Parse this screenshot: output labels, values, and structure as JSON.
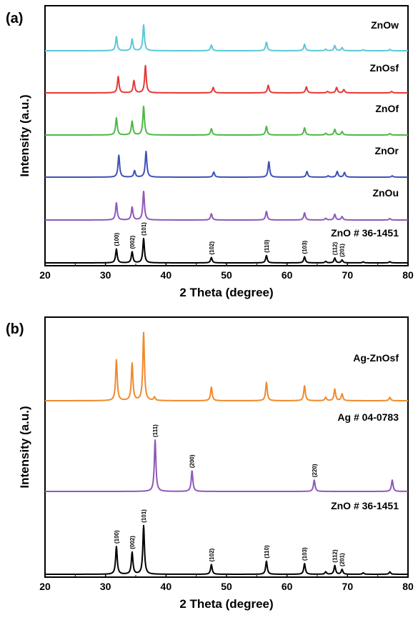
{
  "chart_data": [
    {
      "panel_label": "(a)",
      "type": "line",
      "xlabel": "2 Theta (degree)",
      "ylabel": "Intensity (a.u.)",
      "xlim": [
        20,
        80
      ],
      "xticks": [
        "20",
        "30",
        "40",
        "50",
        "60",
        "70",
        "80"
      ],
      "series": [
        {
          "name": "ZnOw",
          "color": "#5bc8d8",
          "peaks": [
            [
              31.8,
              0.55
            ],
            [
              34.4,
              0.45
            ],
            [
              36.3,
              1.0
            ],
            [
              47.5,
              0.22
            ],
            [
              56.6,
              0.33
            ],
            [
              62.9,
              0.25
            ],
            [
              66.4,
              0.06
            ],
            [
              67.9,
              0.2
            ],
            [
              69.1,
              0.12
            ],
            [
              72.6,
              0.04
            ],
            [
              77.0,
              0.05
            ]
          ]
        },
        {
          "name": "ZnOsf",
          "color": "#e53935",
          "peaks": [
            [
              32.1,
              0.6
            ],
            [
              34.7,
              0.45
            ],
            [
              36.6,
              1.0
            ],
            [
              47.8,
              0.2
            ],
            [
              56.9,
              0.28
            ],
            [
              63.2,
              0.22
            ],
            [
              66.7,
              0.05
            ],
            [
              68.2,
              0.2
            ],
            [
              69.4,
              0.12
            ],
            [
              77.3,
              0.05
            ]
          ]
        },
        {
          "name": "ZnOf",
          "color": "#4cb944",
          "peaks": [
            [
              31.8,
              0.6
            ],
            [
              34.4,
              0.48
            ],
            [
              36.3,
              1.0
            ],
            [
              47.5,
              0.22
            ],
            [
              56.6,
              0.3
            ],
            [
              62.9,
              0.25
            ],
            [
              66.4,
              0.06
            ],
            [
              67.9,
              0.2
            ],
            [
              69.1,
              0.12
            ],
            [
              77.0,
              0.05
            ]
          ]
        },
        {
          "name": "ZnOr",
          "color": "#3f51b5",
          "peaks": [
            [
              32.2,
              0.85
            ],
            [
              34.8,
              0.25
            ],
            [
              36.7,
              1.0
            ],
            [
              47.9,
              0.2
            ],
            [
              57.0,
              0.6
            ],
            [
              63.3,
              0.22
            ],
            [
              66.8,
              0.05
            ],
            [
              68.3,
              0.22
            ],
            [
              69.5,
              0.18
            ],
            [
              77.4,
              0.05
            ]
          ]
        },
        {
          "name": "ZnOu",
          "color": "#8e59b8",
          "peaks": [
            [
              31.8,
              0.6
            ],
            [
              34.4,
              0.45
            ],
            [
              36.3,
              1.0
            ],
            [
              47.5,
              0.22
            ],
            [
              56.6,
              0.3
            ],
            [
              62.9,
              0.25
            ],
            [
              66.4,
              0.06
            ],
            [
              67.9,
              0.2
            ],
            [
              69.1,
              0.12
            ],
            [
              77.0,
              0.05
            ]
          ]
        },
        {
          "name": "ZnO # 36-1451",
          "color": "#000000",
          "peaks": [
            [
              31.8,
              0.57
            ],
            [
              34.4,
              0.45
            ],
            [
              36.3,
              1.0
            ],
            [
              47.5,
              0.22
            ],
            [
              56.6,
              0.3
            ],
            [
              62.9,
              0.25
            ],
            [
              66.4,
              0.06
            ],
            [
              67.9,
              0.2
            ],
            [
              69.1,
              0.12
            ],
            [
              72.6,
              0.04
            ],
            [
              77.0,
              0.05
            ]
          ],
          "peak_labels": [
            {
              "text": "(100)",
              "x": 31.8
            },
            {
              "text": "(002)",
              "x": 34.4
            },
            {
              "text": "(101)",
              "x": 36.3
            },
            {
              "text": "(102)",
              "x": 47.5
            },
            {
              "text": "(110)",
              "x": 56.6
            },
            {
              "text": "(103)",
              "x": 62.9
            },
            {
              "text": "(112)",
              "x": 67.9
            },
            {
              "text": "(201)",
              "x": 69.1
            }
          ]
        }
      ]
    },
    {
      "panel_label": "(b)",
      "type": "line",
      "xlabel": "2 Theta (degree)",
      "ylabel": "Intensity (a.u.)",
      "xlim": [
        20,
        80
      ],
      "xticks": [
        "20",
        "30",
        "40",
        "50",
        "60",
        "70",
        "80"
      ],
      "series": [
        {
          "name": "Ag-ZnOsf",
          "color": "#f08a2c",
          "peaks": [
            [
              31.8,
              0.6
            ],
            [
              34.4,
              0.55
            ],
            [
              36.3,
              1.0
            ],
            [
              38.1,
              0.05
            ],
            [
              47.5,
              0.2
            ],
            [
              56.6,
              0.27
            ],
            [
              62.9,
              0.22
            ],
            [
              66.4,
              0.05
            ],
            [
              67.9,
              0.17
            ],
            [
              69.1,
              0.1
            ],
            [
              77.0,
              0.05
            ]
          ]
        },
        {
          "name": "Ag # 04-0783",
          "color": "#8e59b8",
          "peaks": [
            [
              38.2,
              1.0
            ],
            [
              44.3,
              0.4
            ],
            [
              64.5,
              0.22
            ],
            [
              77.4,
              0.22
            ]
          ],
          "peak_labels": [
            {
              "text": "(111)",
              "x": 38.2
            },
            {
              "text": "(200)",
              "x": 44.3
            },
            {
              "text": "(220)",
              "x": 64.5
            }
          ]
        },
        {
          "name": "ZnO # 36-1451",
          "color": "#000000",
          "peaks": [
            [
              31.8,
              0.57
            ],
            [
              34.4,
              0.45
            ],
            [
              36.3,
              1.0
            ],
            [
              47.5,
              0.2
            ],
            [
              56.6,
              0.27
            ],
            [
              62.9,
              0.22
            ],
            [
              66.4,
              0.05
            ],
            [
              67.9,
              0.18
            ],
            [
              69.1,
              0.1
            ],
            [
              72.6,
              0.03
            ],
            [
              77.0,
              0.05
            ]
          ],
          "peak_labels": [
            {
              "text": "(100)",
              "x": 31.8
            },
            {
              "text": "(002)",
              "x": 34.4
            },
            {
              "text": "(101)",
              "x": 36.3
            },
            {
              "text": "(102)",
              "x": 47.5
            },
            {
              "text": "(110)",
              "x": 56.6
            },
            {
              "text": "(103)",
              "x": 62.9
            },
            {
              "text": "(112)",
              "x": 67.9
            },
            {
              "text": "(201)",
              "x": 69.1
            }
          ]
        }
      ]
    }
  ]
}
